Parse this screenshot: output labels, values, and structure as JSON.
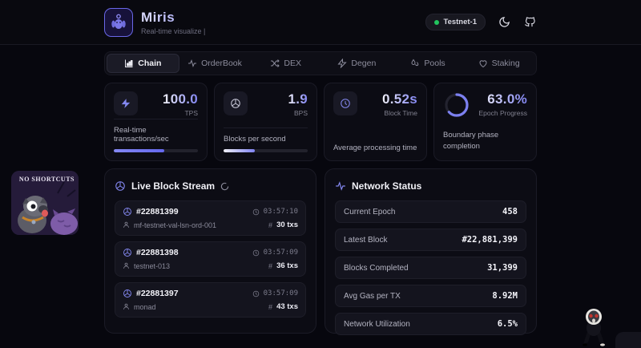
{
  "header": {
    "title": "Miris",
    "subtitle": "Real-time visualize |",
    "badge": "Testnet-1"
  },
  "tabs": [
    {
      "label": "Chain",
      "icon": "bar-chart",
      "active": true
    },
    {
      "label": "OrderBook",
      "icon": "activity",
      "active": false
    },
    {
      "label": "DEX",
      "icon": "shuffle",
      "active": false
    },
    {
      "label": "Degen",
      "icon": "zap",
      "active": false
    },
    {
      "label": "Pools",
      "icon": "droplet",
      "active": false
    },
    {
      "label": "Staking",
      "icon": "heart",
      "active": false
    }
  ],
  "stats": [
    {
      "value": "100.0",
      "unit": "TPS",
      "description": "Real-time transactions/sec",
      "icon": "zap",
      "progress": 60
    },
    {
      "value": "1.9",
      "unit": "BPS",
      "description": "Blocks per second",
      "icon": "box",
      "progress": 37
    },
    {
      "value": "0.52s",
      "unit": "Block Time",
      "description": "Average processing time",
      "icon": "clock"
    },
    {
      "value": "63.0%",
      "unit": "Epoch Progress",
      "description": "Boundary phase completion",
      "ring": 63
    }
  ],
  "block_stream": {
    "title": "Live Block Stream",
    "hash_symbol": "#",
    "blocks": [
      {
        "number": "#22881399",
        "validator": "mf-testnet-val-lsn-ord-001",
        "time": "03:57:10",
        "txs": "30 txs"
      },
      {
        "number": "#22881398",
        "validator": "testnet-013",
        "time": "03:57:09",
        "txs": "36 txs"
      },
      {
        "number": "#22881397",
        "validator": "monad",
        "time": "03:57:09",
        "txs": "43 txs"
      }
    ]
  },
  "network_status": {
    "title": "Network Status",
    "rows": [
      {
        "label": "Current Epoch",
        "value": "458"
      },
      {
        "label": "Latest Block",
        "value": "#22,881,399"
      },
      {
        "label": "Blocks Completed",
        "value": "31,399"
      },
      {
        "label": "Avg Gas per TX",
        "value": "8.92M"
      },
      {
        "label": "Network Utilization",
        "value": "6.5%"
      }
    ]
  },
  "stickers": {
    "no_shortcuts_text": "NO SHORTCUTS"
  },
  "colors": {
    "accent": "#8488f0",
    "green": "#22c55e"
  }
}
